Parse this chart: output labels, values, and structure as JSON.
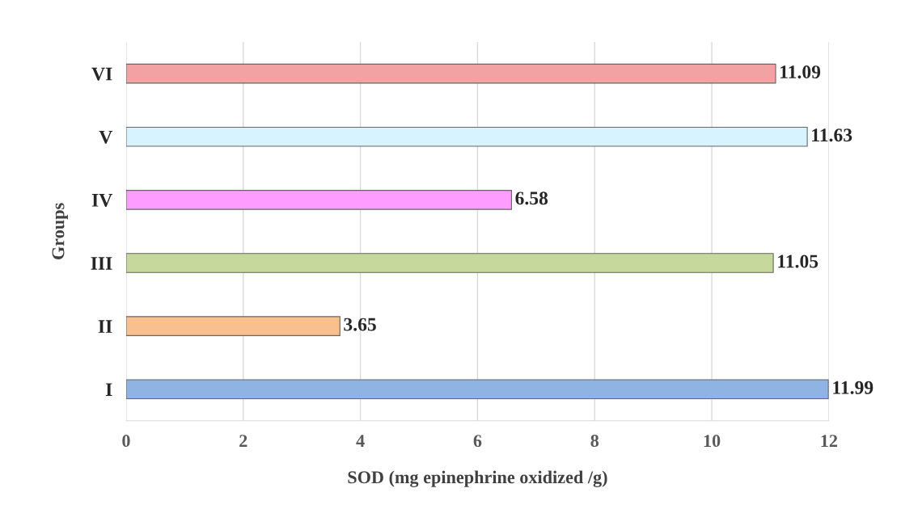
{
  "chart_data": {
    "type": "bar",
    "orientation": "horizontal",
    "xlabel": "SOD (mg epinephrine oxidized /g)",
    "ylabel": "Groups",
    "categories": [
      "VI",
      "V",
      "IV",
      "III",
      "II",
      "I"
    ],
    "values": [
      11.09,
      11.63,
      6.58,
      11.05,
      3.65,
      11.99
    ],
    "colors": [
      "#f2a2a2",
      "#d6f3ff",
      "#ff9cff",
      "#c6d89c",
      "#f9bf8c",
      "#8fb4e3"
    ],
    "xlim": [
      0,
      12
    ],
    "xticks": [
      0,
      2,
      4,
      6,
      8,
      10,
      12
    ],
    "grid": "x",
    "data_labels": true
  }
}
